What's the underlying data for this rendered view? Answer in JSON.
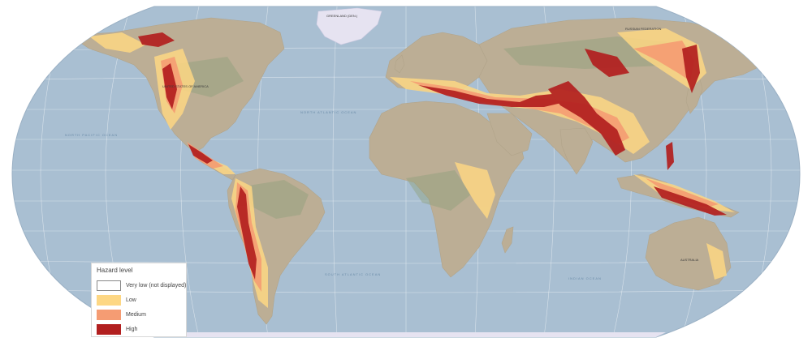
{
  "legend": {
    "title": "Hazard level",
    "items": [
      {
        "label": "Very low (not displayed)",
        "color": "#ffffff",
        "border": "#888888"
      },
      {
        "label": "Low",
        "color": "#fdd784",
        "border": "#fdd784"
      },
      {
        "label": "Medium",
        "color": "#f59c73",
        "border": "#f59c73"
      },
      {
        "label": "High",
        "color": "#b21f1f",
        "border": "#b21f1f"
      }
    ]
  },
  "colors": {
    "ocean": "#a9bfd2",
    "land": "#bcae95",
    "ice": "#e6e3f1",
    "low": "#fdd784",
    "medium": "#f59c73",
    "high": "#b21f1f"
  },
  "map_labels": {
    "greenland": "GREENLAND (DEN.)",
    "usa": "UNITED STATES OF AMERICA",
    "russia": "RUSSIAN FEDERATION",
    "australia": "AUSTRALIA",
    "indian_ocean": "INDIAN OCEAN",
    "north_atlantic": "NORTH ATLANTIC OCEAN",
    "south_atlantic": "SOUTH ATLANTIC OCEAN",
    "north_pacific": "NORTH PACIFIC OCEAN"
  }
}
